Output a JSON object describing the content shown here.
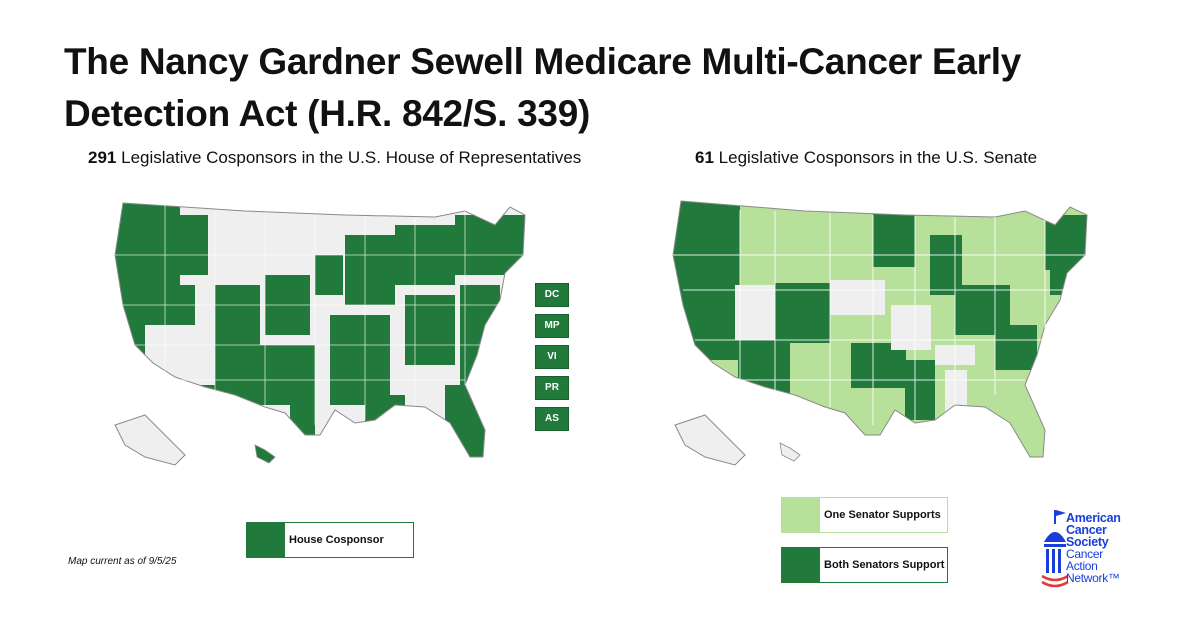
{
  "title": "The Nancy Gardner Sewell Medicare Multi-Cancer Early Detection Act (H.R. 842/S. 339)",
  "house": {
    "count": "291",
    "subtitle": "Legislative Cosponsors in the U.S. House of Representatives",
    "territories": [
      "DC",
      "MP",
      "VI",
      "PR",
      "AS"
    ],
    "legend_label": "House Cosponsor",
    "note": "Map current as of 9/5/25"
  },
  "senate": {
    "count": "61",
    "subtitle": "Legislative Cosponsors in the U.S. Senate",
    "legend_one": "One Senator Supports",
    "legend_both": "Both Senators Support"
  },
  "colors": {
    "dark_green": "#217a3c",
    "light_green": "#b7e19b",
    "gray": "#efefef",
    "border": "#8a8a8a",
    "logo_blue": "#1a3fd8",
    "logo_red": "#e23b3b"
  },
  "logo": {
    "line1": "American",
    "line2": "Cancer",
    "line3": "Society",
    "line4": "Cancer",
    "line5": "Action",
    "line6": "Network™"
  }
}
